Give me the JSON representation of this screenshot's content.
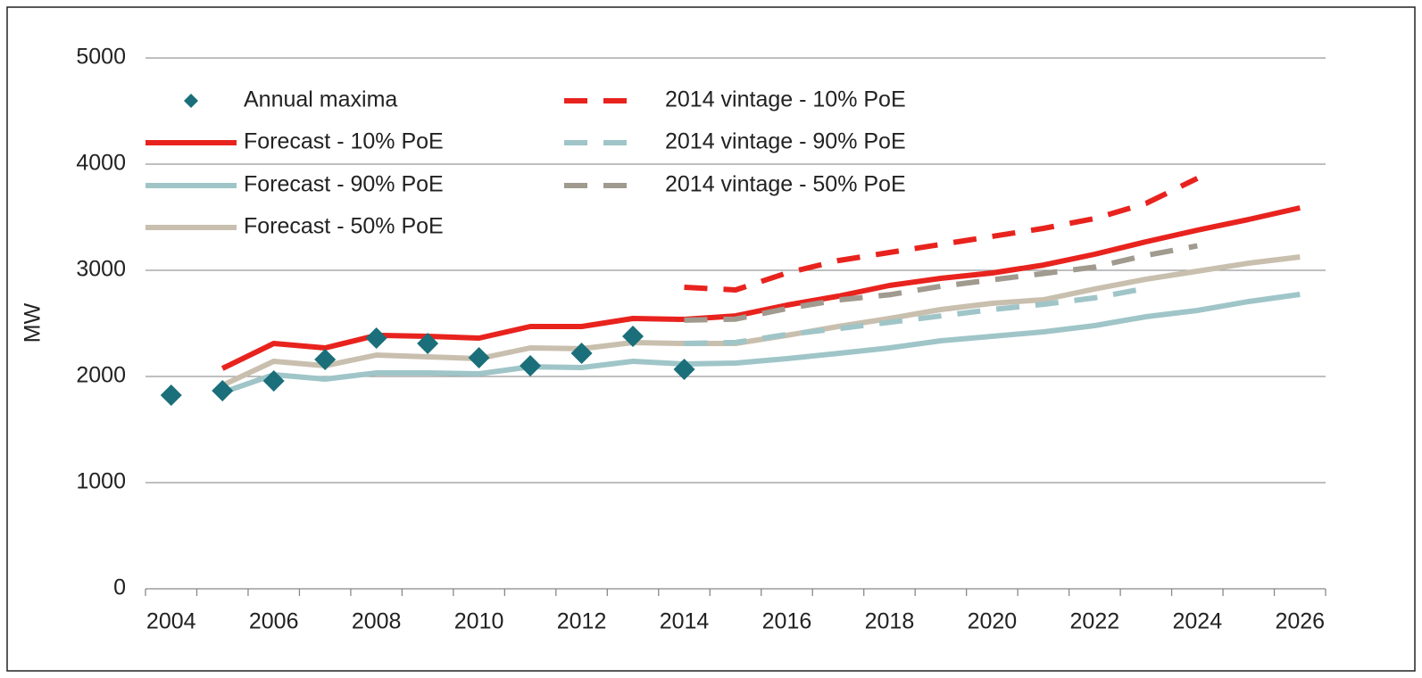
{
  "chart_data": {
    "type": "line",
    "y_label": "MW",
    "categories": [
      "2004",
      null,
      "2006",
      null,
      "2008",
      null,
      "2010",
      null,
      "2012",
      null,
      "2014",
      null,
      "2016",
      null,
      "2018",
      null,
      "2020",
      null,
      "2022",
      null,
      "2024",
      null,
      "2026"
    ],
    "ylim": [
      0,
      5000
    ],
    "yticks": [
      0,
      1000,
      2000,
      3000,
      4000,
      5000
    ],
    "grid": true,
    "legend": "upper left",
    "series": [
      {
        "name": "Annual maxima",
        "type": "scatter",
        "color": "#1a6f7a",
        "values": [
          1824,
          1866,
          1958,
          2160,
          2361,
          2311,
          2176,
          2101,
          2218,
          2378,
          2067,
          null,
          null,
          null,
          null,
          null,
          null,
          null,
          null,
          null,
          null,
          null,
          null
        ]
      },
      {
        "name": "Forecast - 10% PoE",
        "color": "#e8231e",
        "dashed": false,
        "values": [
          null,
          2076,
          2311,
          2269,
          2387,
          2378,
          2361,
          2471,
          2471,
          2546,
          2538,
          2571,
          2672,
          2756,
          2857,
          2924,
          2975,
          3050,
          3151,
          3269,
          3378,
          3479,
          3588
        ]
      },
      {
        "name": "Forecast - 90% PoE",
        "color": "#9fc5c8",
        "dashed": false,
        "values": [
          null,
          1849,
          2017,
          1975,
          2034,
          2034,
          2025,
          2092,
          2084,
          2143,
          2118,
          2126,
          2168,
          2218,
          2269,
          2336,
          2378,
          2420,
          2479,
          2563,
          2622,
          2706,
          2773
        ]
      },
      {
        "name": "Forecast - 50% PoE",
        "color": "#c9bfae",
        "dashed": false,
        "values": [
          null,
          1916,
          2143,
          2101,
          2202,
          2185,
          2168,
          2269,
          2261,
          2319,
          2311,
          2311,
          2387,
          2471,
          2546,
          2630,
          2689,
          2723,
          2824,
          2916,
          2992,
          3067,
          3126
        ]
      },
      {
        "name": "2014  vintage - 10% PoE",
        "color": "#e8231e",
        "dashed": true,
        "values": [
          null,
          null,
          null,
          null,
          null,
          null,
          null,
          null,
          null,
          null,
          2840,
          2815,
          2975,
          3092,
          3168,
          3244,
          3319,
          3395,
          3487,
          3630,
          3866,
          null,
          null
        ]
      },
      {
        "name": "2014  vintage - 90% PoE",
        "color": "#9fc5c8",
        "dashed": true,
        "values": [
          null,
          null,
          null,
          null,
          null,
          null,
          null,
          null,
          null,
          null,
          2311,
          2320,
          2395,
          2450,
          2510,
          2570,
          2630,
          2680,
          2740,
          2830,
          null,
          null,
          null
        ]
      },
      {
        "name": "2014  vintage - 50% PoE",
        "color": "#a09a8f",
        "dashed": true,
        "values": [
          null,
          null,
          null,
          null,
          null,
          null,
          null,
          null,
          null,
          null,
          2530,
          2540,
          2640,
          2720,
          2770,
          2850,
          2910,
          2970,
          3030,
          3140,
          3230,
          null,
          null
        ]
      }
    ]
  }
}
